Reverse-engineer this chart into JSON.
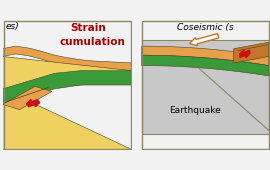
{
  "text_left_prefix": "es)",
  "text_left_line1": "Strain",
  "text_left_line2": "cumulation",
  "text_right_title": "Coseismic (s",
  "text_earthquake": "Earthquake",
  "bg": "#f2f2f2",
  "orange": "#e8a04a",
  "orange_dark": "#c4762a",
  "yellow": "#f0d060",
  "green": "#3a9a3a",
  "gray_light": "#c8c8c8",
  "outline": "#444422",
  "red": "#cc1010",
  "panel_bg": "#ffffff",
  "border": "#888866"
}
